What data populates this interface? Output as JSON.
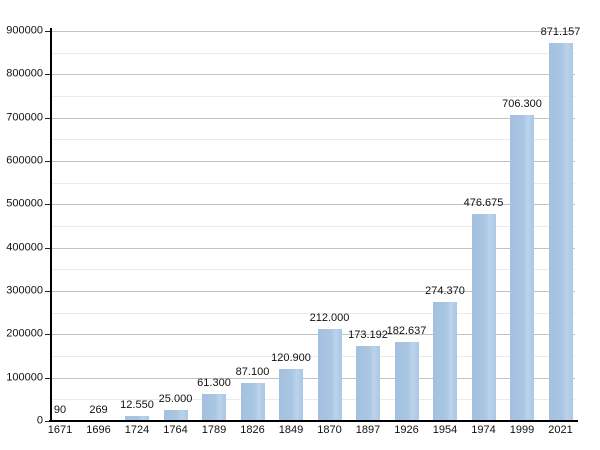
{
  "colors": {
    "background": "#ffffff",
    "bar_fill": "#a9c6e3",
    "bar_highlight": "#bcd3ec",
    "grid_major": "#c2c2c2",
    "grid_minor": "#eaeaea",
    "axis": "#000000",
    "text": "#111111"
  },
  "chart_data": {
    "type": "bar",
    "title": "",
    "xlabel": "",
    "ylabel": "",
    "categories": [
      "1671",
      "1696",
      "1724",
      "1764",
      "1789",
      "1826",
      "1849",
      "1870",
      "1897",
      "1926",
      "1954",
      "1974",
      "1999",
      "2021"
    ],
    "values": [
      90,
      269,
      12550,
      25000,
      61300,
      87100,
      120900,
      212000,
      173192,
      182637,
      274370,
      476675,
      706300,
      871157
    ],
    "value_labels": [
      "90",
      "269",
      "12.550",
      "25.000",
      "61.300",
      "87.100",
      "120.900",
      "212.000",
      "173.192",
      "182.637",
      "274.370",
      "476.675",
      "706.300",
      "871.157"
    ],
    "ylim": [
      0,
      900000
    ],
    "y_major_tick_step": 100000,
    "y_minor_tick_step": 50000,
    "y_tick_labels": [
      "0",
      "100000",
      "200000",
      "300000",
      "400000",
      "500000",
      "600000",
      "700000",
      "800000",
      "900000"
    ],
    "grid": "major and minor horizontal gridlines",
    "legend_position": "none"
  }
}
